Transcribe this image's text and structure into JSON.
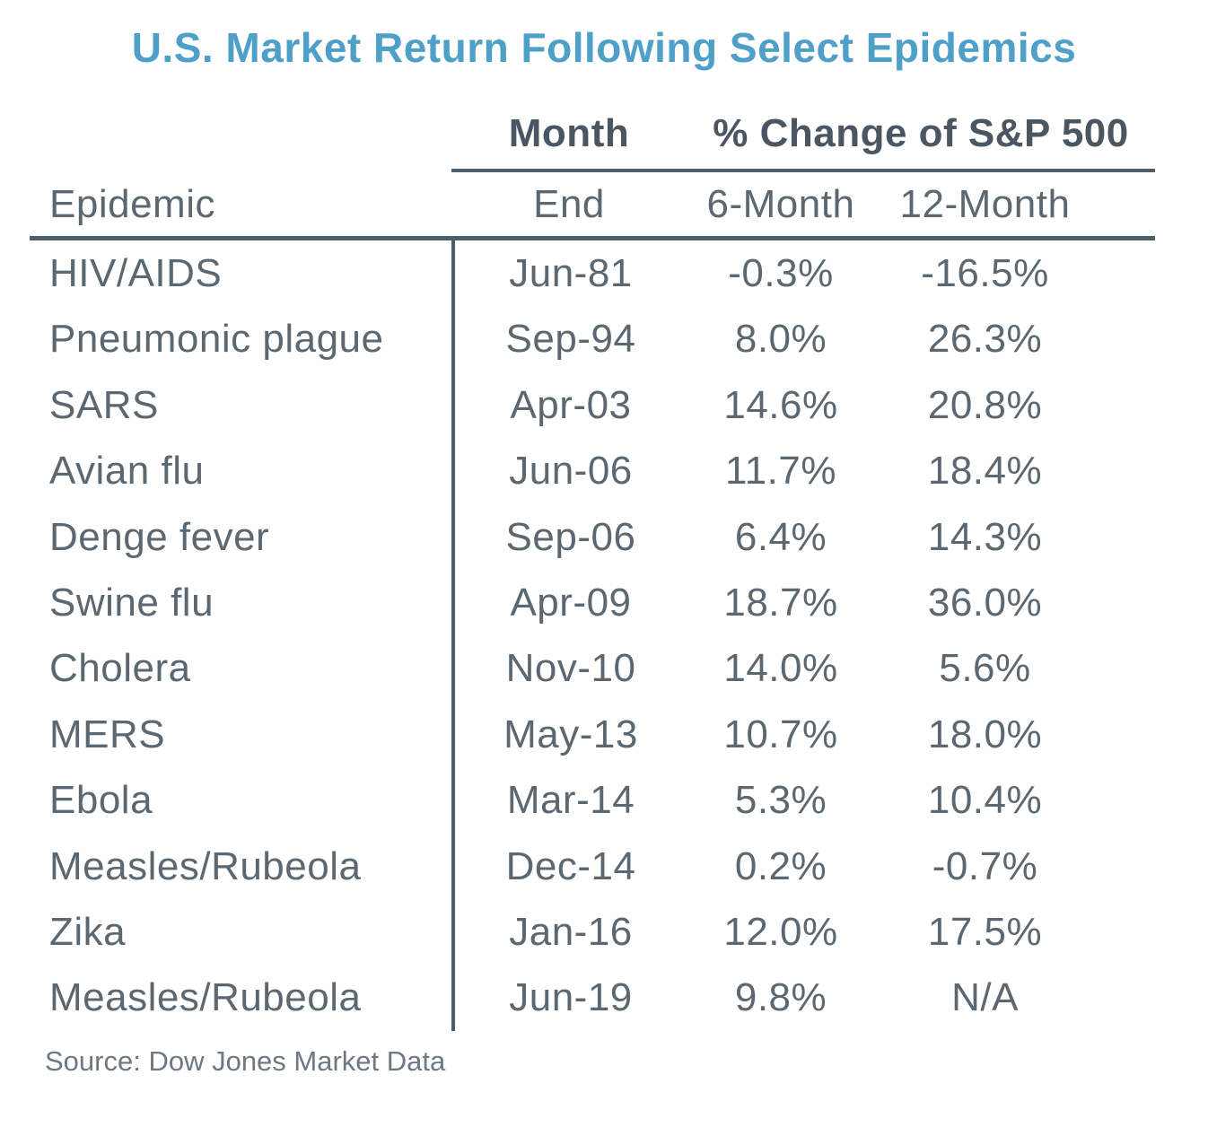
{
  "title": "U.S. Market Return Following Select Epidemics",
  "header": {
    "month_group": "Month",
    "change_group": "% Change of S&P 500",
    "col_epidemic": "Epidemic",
    "col_end": "End",
    "col_6m": "6-Month",
    "col_12m": "12-Month"
  },
  "chart_data": {
    "type": "table",
    "title": "U.S. Market Return Following Select Epidemics",
    "columns": [
      "Epidemic",
      "Month End",
      "6-Month % Change of S&P 500",
      "12-Month % Change of S&P 500"
    ],
    "rows": [
      {
        "epidemic": "HIV/AIDS",
        "end": "Jun-81",
        "six_month": "-0.3%",
        "twelve_month": "-16.5%"
      },
      {
        "epidemic": "Pneumonic plague",
        "end": "Sep-94",
        "six_month": "8.0%",
        "twelve_month": "26.3%"
      },
      {
        "epidemic": "SARS",
        "end": "Apr-03",
        "six_month": "14.6%",
        "twelve_month": "20.8%"
      },
      {
        "epidemic": "Avian flu",
        "end": "Jun-06",
        "six_month": "11.7%",
        "twelve_month": "18.4%"
      },
      {
        "epidemic": "Denge fever",
        "end": "Sep-06",
        "six_month": "6.4%",
        "twelve_month": "14.3%"
      },
      {
        "epidemic": "Swine flu",
        "end": "Apr-09",
        "six_month": "18.7%",
        "twelve_month": "36.0%"
      },
      {
        "epidemic": "Cholera",
        "end": "Nov-10",
        "six_month": "14.0%",
        "twelve_month": "5.6%"
      },
      {
        "epidemic": "MERS",
        "end": "May-13",
        "six_month": "10.7%",
        "twelve_month": "18.0%"
      },
      {
        "epidemic": "Ebola",
        "end": "Mar-14",
        "six_month": "5.3%",
        "twelve_month": "10.4%"
      },
      {
        "epidemic": "Measles/Rubeola",
        "end": "Dec-14",
        "six_month": "0.2%",
        "twelve_month": "-0.7%"
      },
      {
        "epidemic": "Zika",
        "end": "Jan-16",
        "six_month": "12.0%",
        "twelve_month": "17.5%"
      },
      {
        "epidemic": "Measles/Rubeola",
        "end": "Jun-19",
        "six_month": "9.8%",
        "twelve_month": "N/A"
      }
    ]
  },
  "source": "Source: Dow Jones Market Data",
  "colors": {
    "title": "#4fa0c8",
    "bold_header_text": "#4a5763",
    "body_text": "#5b6771",
    "rule": "#4e5d6a",
    "source_text": "#6d7882",
    "background": "#ffffff"
  }
}
